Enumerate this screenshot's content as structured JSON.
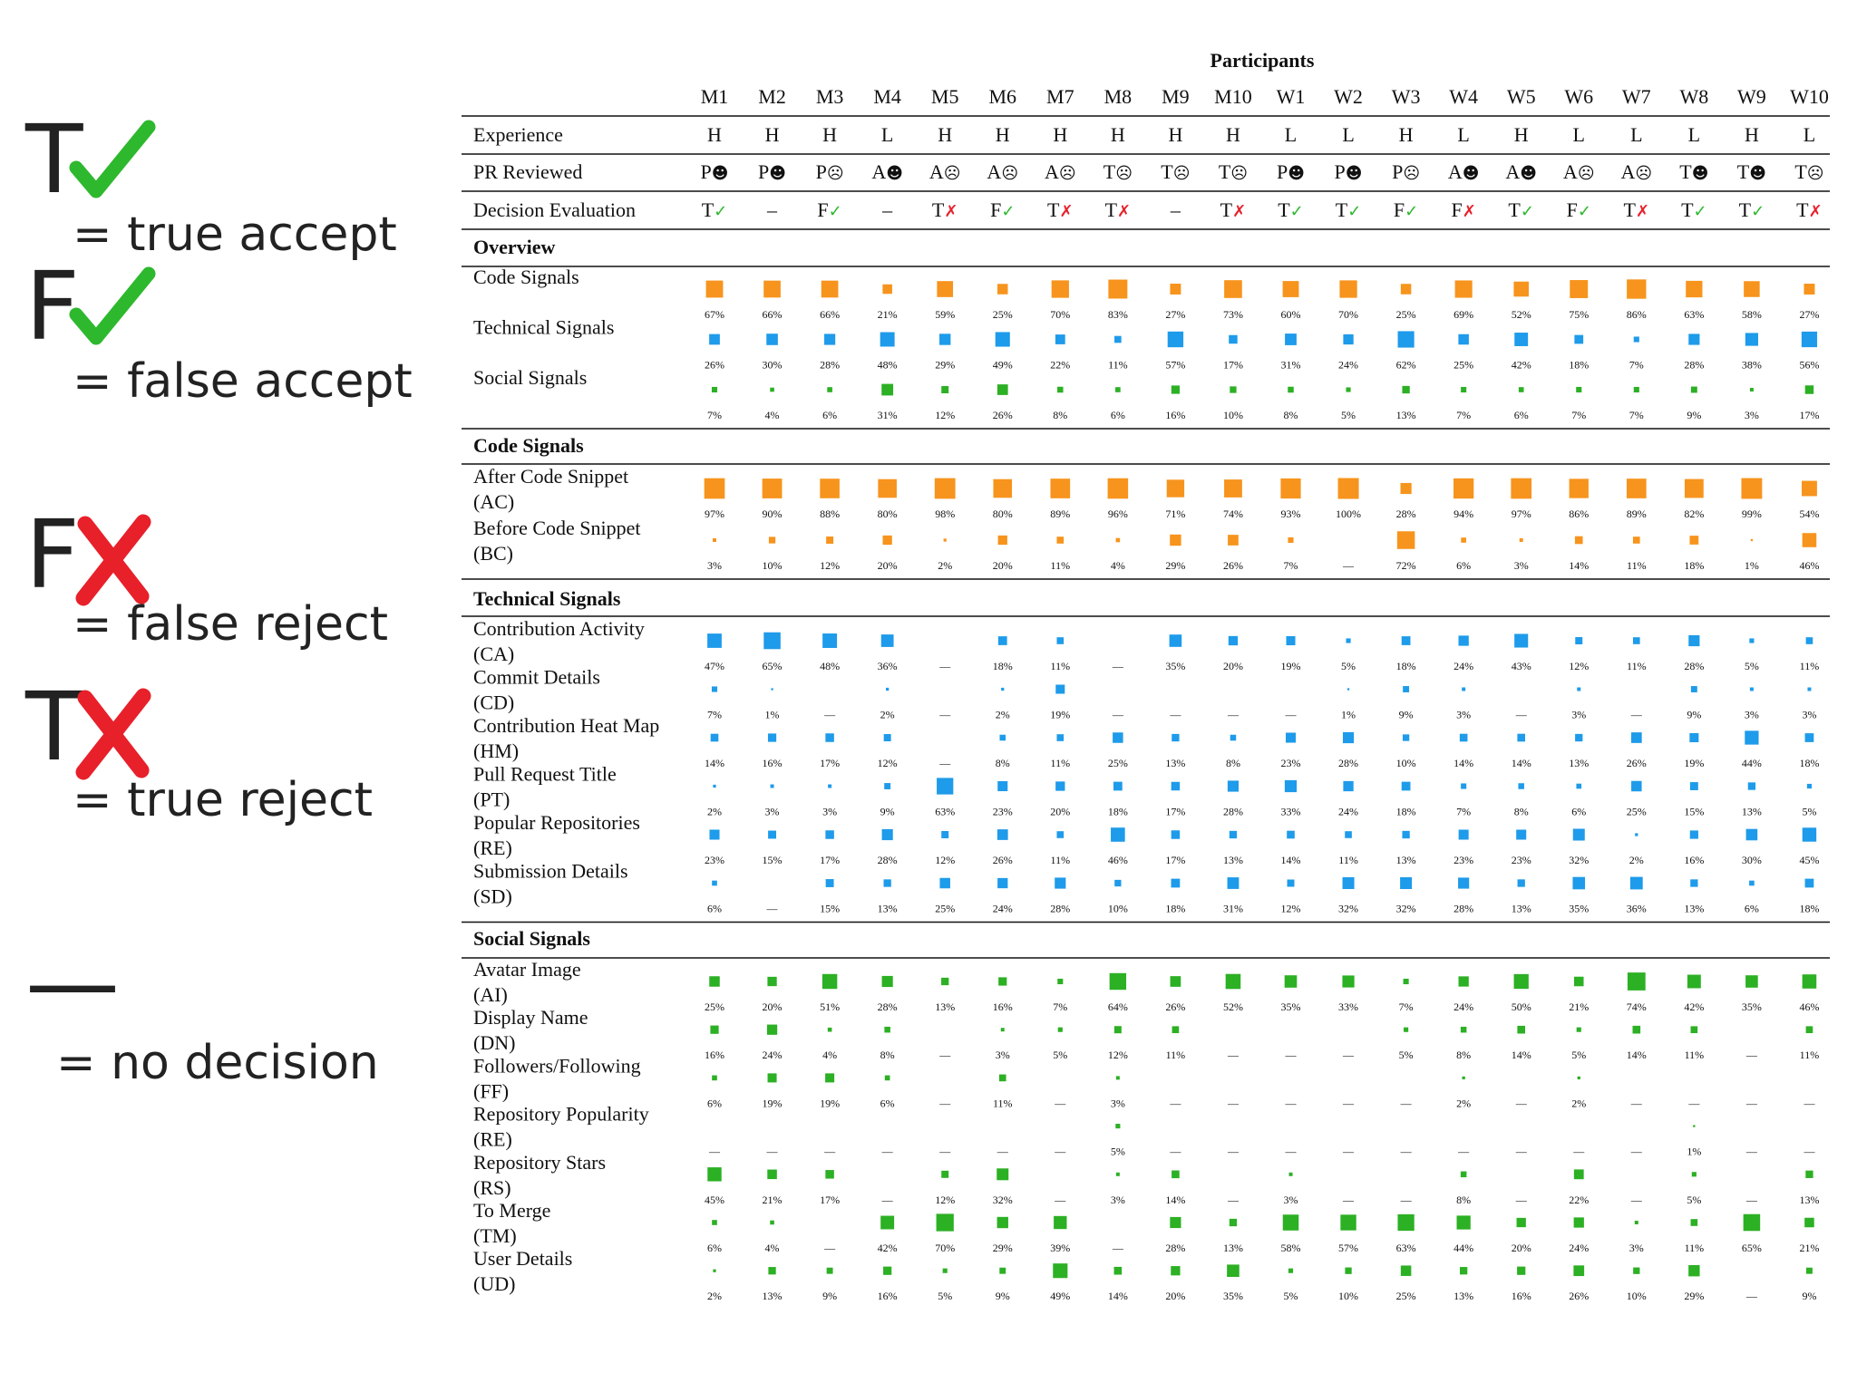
{
  "legend": [
    {
      "letter": "T",
      "label": "= true accept"
    },
    {
      "letter": "F",
      "label": "= false accept"
    },
    {
      "letter": "F",
      "label": "= false reject"
    },
    {
      "letter": "T",
      "label": "= true reject"
    },
    {
      "letter": "—",
      "label": "= no decision"
    }
  ],
  "table": {
    "title": "Participants",
    "participants": [
      "M1",
      "M2",
      "M3",
      "M4",
      "M5",
      "M6",
      "M7",
      "M8",
      "M9",
      "M10",
      "W1",
      "W2",
      "W3",
      "W4",
      "W5",
      "W6",
      "W7",
      "W8",
      "W9",
      "W10"
    ],
    "attributes": [
      {
        "label": "Experience",
        "values": [
          "H",
          "H",
          "H",
          "L",
          "H",
          "H",
          "H",
          "H",
          "H",
          "H",
          "L",
          "L",
          "H",
          "L",
          "H",
          "L",
          "L",
          "L",
          "H",
          "L"
        ]
      },
      {
        "label": "PR Reviewed",
        "values": [
          "P☻",
          "P☻",
          "P☹",
          "A☻",
          "A☹",
          "A☹",
          "A☹",
          "T☹",
          "T☹",
          "T☹",
          "P☻",
          "P☻",
          "P☹",
          "A☻",
          "A☻",
          "A☹",
          "A☹",
          "T☻",
          "T☻",
          "T☹"
        ]
      },
      {
        "label": "Decision Evaluation",
        "values": [
          "T✓",
          "–",
          "F✓",
          "–",
          "T✗",
          "F✓",
          "T✗",
          "T✗",
          "–",
          "T✗",
          "T✓",
          "T✓",
          "F✓",
          "F✗",
          "T✓",
          "F✓",
          "T✗",
          "T✓",
          "T✓",
          "T✗"
        ]
      }
    ],
    "sections": [
      {
        "title": "Overview",
        "rows": [
          {
            "label": "Code Signals",
            "color": "#f7941d",
            "values": [
              67,
              66,
              66,
              21,
              59,
              25,
              70,
              83,
              27,
              73,
              60,
              70,
              25,
              69,
              52,
              75,
              86,
              63,
              58,
              27
            ],
            "value_labels": [
              "67%",
              "66%",
              "66%",
              "21%",
              "59%",
              "25%",
              "70%",
              "83%",
              "27%",
              "73%",
              "60%",
              "70%",
              "25%",
              "69%",
              "52%",
              "75%",
              "86%",
              "63%",
              "58%",
              "27%"
            ]
          },
          {
            "label": "Technical Signals",
            "color": "#1e9bea",
            "values": [
              26,
              30,
              28,
              48,
              29,
              49,
              22,
              11,
              57,
              17,
              31,
              24,
              62,
              25,
              42,
              18,
              7,
              28,
              38,
              56
            ],
            "value_labels": [
              "26%",
              "30%",
              "28%",
              "48%",
              "29%",
              "49%",
              "22%",
              "11%",
              "57%",
              "17%",
              "31%",
              "24%",
              "62%",
              "25%",
              "42%",
              "18%",
              "7%",
              "28%",
              "38%",
              "56%"
            ]
          },
          {
            "label": "Social Signals",
            "color": "#2cb024",
            "values": [
              7,
              4,
              6,
              31,
              12,
              26,
              8,
              6,
              16,
              10,
              8,
              5,
              13,
              7,
              6,
              7,
              7,
              9,
              3,
              17
            ],
            "value_labels": [
              "7%",
              "4%",
              "6%",
              "31%",
              "12%",
              "26%",
              "8%",
              "6%",
              "16%",
              "10%",
              "8%",
              "5%",
              "13%",
              "7%",
              "6%",
              "7%",
              "7%",
              "9%",
              "3%",
              "17%"
            ]
          }
        ]
      },
      {
        "title": "Code Signals",
        "color": "#f7941d",
        "rows": [
          {
            "label": "After Code Snippet",
            "abbr": "(AC)",
            "values": [
              97,
              90,
              88,
              80,
              98,
              80,
              89,
              96,
              71,
              74,
              93,
              100,
              28,
              94,
              97,
              86,
              89,
              82,
              99,
              54
            ],
            "value_labels": [
              "97%",
              "90%",
              "88%",
              "80%",
              "98%",
              "80%",
              "89%",
              "96%",
              "71%",
              "74%",
              "93%",
              "100%",
              "28%",
              "94%",
              "97%",
              "86%",
              "89%",
              "82%",
              "99%",
              "54%"
            ]
          },
          {
            "label": "Before Code Snippet",
            "abbr": "(BC)",
            "values": [
              3,
              10,
              12,
              20,
              2,
              20,
              11,
              4,
              29,
              26,
              7,
              null,
              72,
              6,
              3,
              14,
              11,
              18,
              1,
              46
            ],
            "value_labels": [
              "3%",
              "10%",
              "12%",
              "20%",
              "2%",
              "20%",
              "11%",
              "4%",
              "29%",
              "26%",
              "7%",
              "—",
              "72%",
              "6%",
              "3%",
              "14%",
              "11%",
              "18%",
              "1%",
              "46%"
            ]
          }
        ]
      },
      {
        "title": "Technical Signals",
        "color": "#1e9bea",
        "rows": [
          {
            "label": "Contribution Activity",
            "abbr": "(CA)",
            "values": [
              47,
              65,
              48,
              36,
              null,
              18,
              11,
              null,
              35,
              20,
              19,
              5,
              18,
              24,
              43,
              12,
              11,
              28,
              5,
              11
            ],
            "value_labels": [
              "47%",
              "65%",
              "48%",
              "36%",
              "—",
              "18%",
              "11%",
              "—",
              "35%",
              "20%",
              "19%",
              "5%",
              "18%",
              "24%",
              "43%",
              "12%",
              "11%",
              "28%",
              "5%",
              "11%"
            ]
          },
          {
            "label": "Commit Details",
            "abbr": "(CD)",
            "values": [
              7,
              1,
              null,
              2,
              null,
              2,
              19,
              null,
              null,
              null,
              null,
              1,
              9,
              3,
              null,
              3,
              null,
              9,
              3,
              3
            ],
            "value_labels": [
              "7%",
              "1%",
              "—",
              "2%",
              "—",
              "2%",
              "19%",
              "—",
              "—",
              "—",
              "—",
              "1%",
              "9%",
              "3%",
              "—",
              "3%",
              "—",
              "9%",
              "3%",
              "3%"
            ]
          },
          {
            "label": "Contribution Heat Map",
            "abbr": "(HM)",
            "values": [
              14,
              16,
              17,
              12,
              null,
              8,
              11,
              25,
              13,
              8,
              23,
              28,
              10,
              14,
              14,
              13,
              26,
              19,
              44,
              18
            ],
            "value_labels": [
              "14%",
              "16%",
              "17%",
              "12%",
              "—",
              "8%",
              "11%",
              "25%",
              "13%",
              "8%",
              "23%",
              "28%",
              "10%",
              "14%",
              "14%",
              "13%",
              "26%",
              "19%",
              "44%",
              "18%"
            ]
          },
          {
            "label": "Pull Request Title",
            "abbr": "(PT)",
            "values": [
              2,
              3,
              3,
              9,
              63,
              23,
              20,
              18,
              17,
              28,
              33,
              24,
              18,
              7,
              8,
              6,
              25,
              15,
              13,
              5
            ],
            "value_labels": [
              "2%",
              "3%",
              "3%",
              "9%",
              "63%",
              "23%",
              "20%",
              "18%",
              "17%",
              "28%",
              "33%",
              "24%",
              "18%",
              "7%",
              "8%",
              "6%",
              "25%",
              "15%",
              "13%",
              "5%"
            ]
          },
          {
            "label": "Popular Repositories",
            "abbr": "(RE)",
            "values": [
              23,
              15,
              17,
              28,
              12,
              26,
              11,
              46,
              17,
              13,
              14,
              11,
              13,
              23,
              23,
              32,
              2,
              16,
              30,
              45
            ],
            "value_labels": [
              "23%",
              "15%",
              "17%",
              "28%",
              "12%",
              "26%",
              "11%",
              "46%",
              "17%",
              "13%",
              "14%",
              "11%",
              "13%",
              "23%",
              "23%",
              "32%",
              "2%",
              "16%",
              "30%",
              "45%"
            ]
          },
          {
            "label": "Submission Details",
            "abbr": "(SD)",
            "values": [
              6,
              null,
              15,
              13,
              25,
              24,
              28,
              10,
              18,
              31,
              12,
              32,
              32,
              28,
              13,
              35,
              36,
              13,
              6,
              18
            ],
            "value_labels": [
              "6%",
              "—",
              "15%",
              "13%",
              "25%",
              "24%",
              "28%",
              "10%",
              "18%",
              "31%",
              "12%",
              "32%",
              "32%",
              "28%",
              "13%",
              "35%",
              "36%",
              "13%",
              "6%",
              "18%"
            ]
          }
        ]
      },
      {
        "title": "Social Signals",
        "color": "#2cb024",
        "rows": [
          {
            "label": "Avatar Image",
            "abbr": "(AI)",
            "values": [
              25,
              20,
              51,
              28,
              13,
              16,
              7,
              64,
              26,
              52,
              35,
              33,
              7,
              24,
              50,
              21,
              74,
              42,
              35,
              46
            ],
            "value_labels": [
              "25%",
              "20%",
              "51%",
              "28%",
              "13%",
              "16%",
              "7%",
              "64%",
              "26%",
              "52%",
              "35%",
              "33%",
              "7%",
              "24%",
              "50%",
              "21%",
              "74%",
              "42%",
              "35%",
              "46%"
            ]
          },
          {
            "label": "Display Name",
            "abbr": "(DN)",
            "values": [
              16,
              24,
              4,
              8,
              null,
              3,
              5,
              12,
              11,
              null,
              null,
              null,
              5,
              8,
              14,
              5,
              14,
              11,
              null,
              11
            ],
            "value_labels": [
              "16%",
              "24%",
              "4%",
              "8%",
              "—",
              "3%",
              "5%",
              "12%",
              "11%",
              "—",
              "—",
              "—",
              "5%",
              "8%",
              "14%",
              "5%",
              "14%",
              "11%",
              "—",
              "11%"
            ]
          },
          {
            "label": "Followers/Following",
            "abbr": "(FF)",
            "values": [
              6,
              19,
              19,
              6,
              null,
              11,
              null,
              3,
              null,
              null,
              null,
              null,
              null,
              2,
              null,
              2,
              null,
              null,
              null,
              null
            ],
            "value_labels": [
              "6%",
              "19%",
              "19%",
              "6%",
              "—",
              "11%",
              "—",
              "3%",
              "—",
              "—",
              "—",
              "—",
              "—",
              "2%",
              "—",
              "2%",
              "—",
              "—",
              "—",
              "—"
            ]
          },
          {
            "label": "Repository Popularity",
            "abbr": "(RE)",
            "values": [
              null,
              null,
              null,
              null,
              null,
              null,
              null,
              5,
              null,
              null,
              null,
              null,
              null,
              null,
              null,
              null,
              null,
              1,
              null,
              null
            ],
            "value_labels": [
              "—",
              "—",
              "—",
              "—",
              "—",
              "—",
              "—",
              "5%",
              "—",
              "—",
              "—",
              "—",
              "—",
              "—",
              "—",
              "—",
              "—",
              "1%",
              "—",
              "—"
            ]
          },
          {
            "label": "Repository Stars",
            "abbr": "(RS)",
            "values": [
              45,
              21,
              17,
              null,
              12,
              32,
              null,
              3,
              14,
              null,
              3,
              null,
              null,
              8,
              null,
              22,
              null,
              5,
              null,
              13
            ],
            "value_labels": [
              "45%",
              "21%",
              "17%",
              "—",
              "12%",
              "32%",
              "—",
              "3%",
              "14%",
              "—",
              "3%",
              "—",
              "—",
              "8%",
              "—",
              "22%",
              "—",
              "5%",
              "—",
              "13%"
            ]
          },
          {
            "label": "To Merge",
            "abbr": "(TM)",
            "values": [
              6,
              4,
              null,
              42,
              70,
              29,
              39,
              null,
              28,
              13,
              58,
              57,
              63,
              44,
              20,
              24,
              3,
              11,
              65,
              21
            ],
            "value_labels": [
              "6%",
              "4%",
              "—",
              "42%",
              "70%",
              "29%",
              "39%",
              "—",
              "28%",
              "13%",
              "58%",
              "57%",
              "63%",
              "44%",
              "20%",
              "24%",
              "3%",
              "11%",
              "65%",
              "21%"
            ]
          },
          {
            "label": "User Details",
            "abbr": "(UD)",
            "values": [
              2,
              13,
              9,
              16,
              5,
              9,
              49,
              14,
              20,
              35,
              5,
              10,
              25,
              13,
              16,
              26,
              10,
              29,
              null,
              9
            ],
            "value_labels": [
              "2%",
              "13%",
              "9%",
              "16%",
              "5%",
              "9%",
              "49%",
              "14%",
              "20%",
              "35%",
              "5%",
              "10%",
              "25%",
              "13%",
              "16%",
              "26%",
              "10%",
              "29%",
              "—",
              "9%"
            ]
          }
        ]
      }
    ]
  }
}
